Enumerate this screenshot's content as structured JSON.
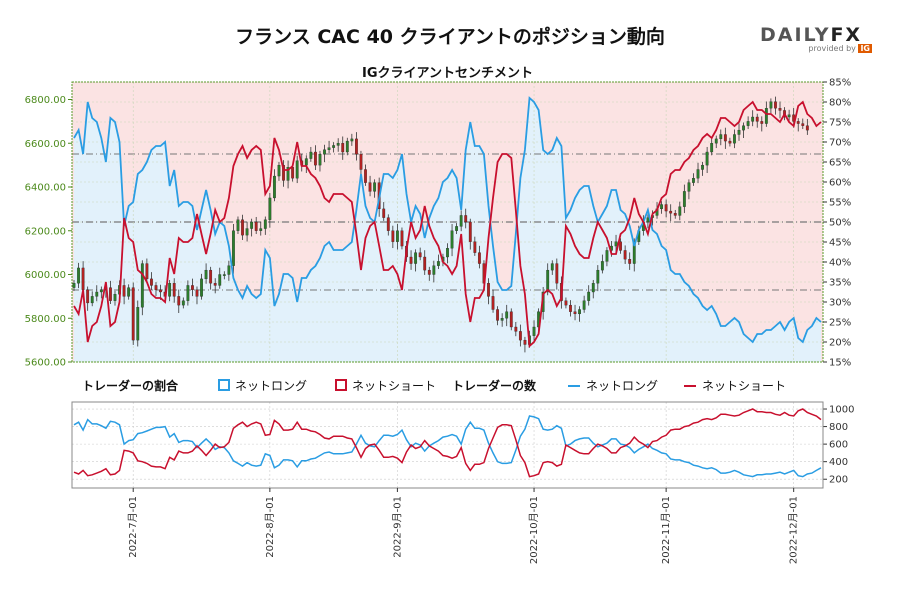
{
  "title": "フランス CAC 40 クライアントのポジション動向",
  "logo": {
    "main_a": "DAILY",
    "main_b": "FX",
    "sub": "provided by",
    "badge": "IG"
  },
  "colors": {
    "long": "#2a9de3",
    "short": "#c8102e",
    "up": "#2c7d2c",
    "down": "#b22222",
    "long_bg": "#e2f1fb",
    "short_bg": "#fbe3e3"
  },
  "chart_data": {
    "type": "line",
    "subtitle": "IGクライアントセンチメント",
    "x_ticks": [
      "2022-7月-01",
      "2022-8月-01",
      "2022-9月-01",
      "2022-10月-01",
      "2022-11月-01",
      "2022-12月-01"
    ],
    "price_axis": {
      "ticks": [
        "5600.00",
        "5800.00",
        "6000.00",
        "6200.00",
        "6400.00",
        "6600.00",
        "6800.00"
      ],
      "range": [
        5600,
        6880
      ]
    },
    "pct_axis": {
      "ticks": [
        "15%",
        "20%",
        "25%",
        "30%",
        "35%",
        "40%",
        "45%",
        "50%",
        "55%",
        "60%",
        "65%",
        "70%",
        "75%",
        "80%",
        "85%"
      ],
      "range": [
        15,
        85
      ]
    },
    "count_axis": {
      "ticks": [
        "200",
        "400",
        "600",
        "800",
        "1000"
      ],
      "range": [
        100,
        1080
      ]
    },
    "legend": {
      "ratio_label": "トレーダーの割合",
      "count_label": "トレーダーの数",
      "long": "ネットロング",
      "short": "ネットショート"
    },
    "price_close": [
      5960,
      6030,
      5930,
      5870,
      5900,
      5920,
      5930,
      5940,
      5880,
      5910,
      5950,
      5900,
      5940,
      5700,
      5850,
      6050,
      5980,
      5950,
      5930,
      5920,
      5900,
      5960,
      5900,
      5860,
      5880,
      5950,
      5930,
      5900,
      5980,
      6020,
      5960,
      5950,
      6000,
      6000,
      6040,
      6200,
      6250,
      6180,
      6210,
      6240,
      6200,
      6210,
      6250,
      6350,
      6450,
      6500,
      6430,
      6490,
      6440,
      6520,
      6500,
      6530,
      6560,
      6500,
      6550,
      6570,
      6580,
      6590,
      6600,
      6560,
      6610,
      6620,
      6550,
      6480,
      6420,
      6380,
      6420,
      6300,
      6260,
      6200,
      6150,
      6200,
      6130,
      6080,
      6050,
      6100,
      6080,
      6020,
      6000,
      6040,
      6060,
      6080,
      6120,
      6200,
      6220,
      6270,
      6240,
      6150,
      6100,
      6050,
      5960,
      5900,
      5840,
      5790,
      5800,
      5830,
      5760,
      5740,
      5700,
      5680,
      5720,
      5760,
      5830,
      5920,
      6020,
      6050,
      5960,
      5880,
      5860,
      5830,
      5820,
      5840,
      5880,
      5920,
      5960,
      6020,
      6060,
      6110,
      6130,
      6150,
      6110,
      6070,
      6050,
      6150,
      6200,
      6240,
      6260,
      6270,
      6300,
      6320,
      6290,
      6280,
      6270,
      6310,
      6380,
      6420,
      6440,
      6480,
      6500,
      6560,
      6600,
      6620,
      6640,
      6610,
      6600,
      6640,
      6660,
      6680,
      6700,
      6720,
      6700,
      6690,
      6760,
      6790,
      6760,
      6750,
      6720,
      6730,
      6700,
      6690,
      6680,
      6660
    ],
    "net_long_pct": [
      71,
      73,
      67,
      80,
      76,
      75,
      71,
      65,
      76,
      75,
      70,
      49,
      54,
      55,
      62,
      63,
      65,
      68,
      69,
      69,
      70,
      59,
      63,
      54,
      55,
      55,
      54,
      48,
      53,
      58,
      53,
      47,
      50,
      49,
      44,
      36,
      33,
      31,
      34,
      32,
      31,
      32,
      43,
      41,
      29,
      32,
      37,
      37,
      36,
      30,
      36,
      36,
      38,
      39,
      41,
      44,
      45,
      43,
      43,
      43,
      44,
      45,
      53,
      62,
      54,
      51,
      50,
      56,
      62,
      62,
      61,
      63,
      67,
      57,
      50,
      54,
      52,
      46,
      51,
      54,
      56,
      60,
      61,
      63,
      61,
      53,
      68,
      75,
      69,
      69,
      67,
      54,
      44,
      35,
      33,
      33,
      34,
      47,
      61,
      68,
      81,
      80,
      78,
      68,
      67,
      68,
      71,
      69,
      51,
      53,
      56,
      58,
      59,
      59,
      54,
      50,
      52,
      54,
      58,
      58,
      53,
      52,
      49,
      44,
      48,
      50,
      53,
      48,
      47,
      44,
      43,
      38,
      37,
      37,
      35,
      34,
      32,
      31,
      29,
      28,
      29,
      27,
      24,
      24,
      25,
      26,
      25,
      22,
      21,
      20,
      22,
      22,
      23,
      23,
      24,
      25,
      23,
      25,
      26,
      21,
      20,
      23,
      24,
      26,
      25
    ],
    "net_short_pct": [
      29,
      27,
      33,
      20,
      24,
      25,
      29,
      35,
      24,
      25,
      30,
      51,
      46,
      45,
      38,
      37,
      35,
      32,
      31,
      31,
      30,
      41,
      37,
      46,
      45,
      45,
      46,
      52,
      47,
      42,
      47,
      53,
      50,
      51,
      56,
      64,
      67,
      69,
      66,
      68,
      69,
      68,
      57,
      59,
      71,
      68,
      63,
      63,
      64,
      70,
      64,
      64,
      62,
      61,
      59,
      56,
      55,
      57,
      57,
      57,
      56,
      55,
      47,
      38,
      46,
      49,
      50,
      44,
      38,
      38,
      39,
      37,
      33,
      43,
      50,
      46,
      48,
      54,
      49,
      46,
      44,
      40,
      39,
      37,
      39,
      47,
      32,
      25,
      31,
      31,
      33,
      46,
      56,
      65,
      67,
      67,
      66,
      53,
      39,
      32,
      19,
      20,
      22,
      32,
      33,
      32,
      29,
      31,
      49,
      47,
      44,
      42,
      41,
      41,
      46,
      50,
      48,
      46,
      42,
      42,
      47,
      48,
      51,
      56,
      52,
      50,
      47,
      52,
      53,
      56,
      57,
      62,
      63,
      63,
      65,
      66,
      68,
      69,
      71,
      72,
      71,
      73,
      76,
      76,
      75,
      74,
      75,
      78,
      79,
      80,
      78,
      78,
      77,
      77,
      76,
      75,
      77,
      75,
      74,
      79,
      80,
      77,
      76,
      74,
      75
    ],
    "long_count": [
      820,
      850,
      760,
      880,
      830,
      830,
      810,
      780,
      860,
      850,
      820,
      600,
      640,
      650,
      720,
      730,
      750,
      770,
      790,
      790,
      800,
      680,
      720,
      620,
      640,
      640,
      630,
      560,
      610,
      660,
      610,
      540,
      570,
      560,
      500,
      410,
      380,
      350,
      390,
      360,
      350,
      360,
      490,
      470,
      330,
      360,
      420,
      420,
      410,
      340,
      410,
      410,
      430,
      440,
      470,
      500,
      510,
      490,
      490,
      490,
      500,
      510,
      600,
      700,
      610,
      580,
      570,
      640,
      700,
      700,
      690,
      710,
      760,
      650,
      570,
      610,
      590,
      520,
      580,
      610,
      640,
      680,
      690,
      710,
      690,
      600,
      770,
      850,
      780,
      780,
      760,
      610,
      500,
      400,
      380,
      380,
      390,
      530,
      690,
      770,
      920,
      910,
      890,
      770,
      760,
      770,
      810,
      780,
      580,
      600,
      640,
      660,
      670,
      670,
      610,
      570,
      590,
      610,
      660,
      660,
      600,
      590,
      560,
      500,
      540,
      570,
      600,
      550,
      530,
      500,
      490,
      430,
      420,
      420,
      400,
      390,
      360,
      350,
      330,
      320,
      330,
      310,
      270,
      270,
      280,
      300,
      280,
      250,
      240,
      230,
      250,
      250,
      260,
      260,
      270,
      280,
      260,
      280,
      300,
      240,
      230,
      260,
      270,
      300,
      330
    ],
    "short_count": [
      280,
      260,
      300,
      240,
      250,
      270,
      290,
      320,
      250,
      260,
      300,
      530,
      520,
      500,
      410,
      400,
      380,
      350,
      340,
      340,
      320,
      450,
      420,
      520,
      500,
      500,
      520,
      580,
      530,
      470,
      530,
      600,
      560,
      570,
      620,
      780,
      820,
      850,
      800,
      830,
      850,
      830,
      700,
      710,
      870,
      830,
      760,
      760,
      770,
      850,
      770,
      770,
      750,
      740,
      710,
      670,
      660,
      690,
      690,
      690,
      670,
      660,
      560,
      450,
      550,
      590,
      600,
      530,
      450,
      450,
      460,
      440,
      390,
      510,
      590,
      550,
      570,
      640,
      580,
      550,
      520,
      470,
      460,
      440,
      460,
      560,
      380,
      300,
      370,
      370,
      390,
      550,
      670,
      790,
      820,
      820,
      810,
      650,
      470,
      390,
      230,
      240,
      260,
      390,
      400,
      390,
      350,
      370,
      590,
      560,
      530,
      500,
      490,
      490,
      550,
      600,
      580,
      550,
      500,
      500,
      560,
      580,
      610,
      680,
      630,
      600,
      560,
      630,
      640,
      680,
      700,
      760,
      770,
      770,
      800,
      810,
      840,
      850,
      880,
      890,
      880,
      900,
      940,
      940,
      930,
      920,
      930,
      960,
      980,
      1000,
      970,
      970,
      960,
      960,
      940,
      930,
      960,
      930,
      920,
      980,
      1000,
      960,
      940,
      920,
      880
    ]
  }
}
